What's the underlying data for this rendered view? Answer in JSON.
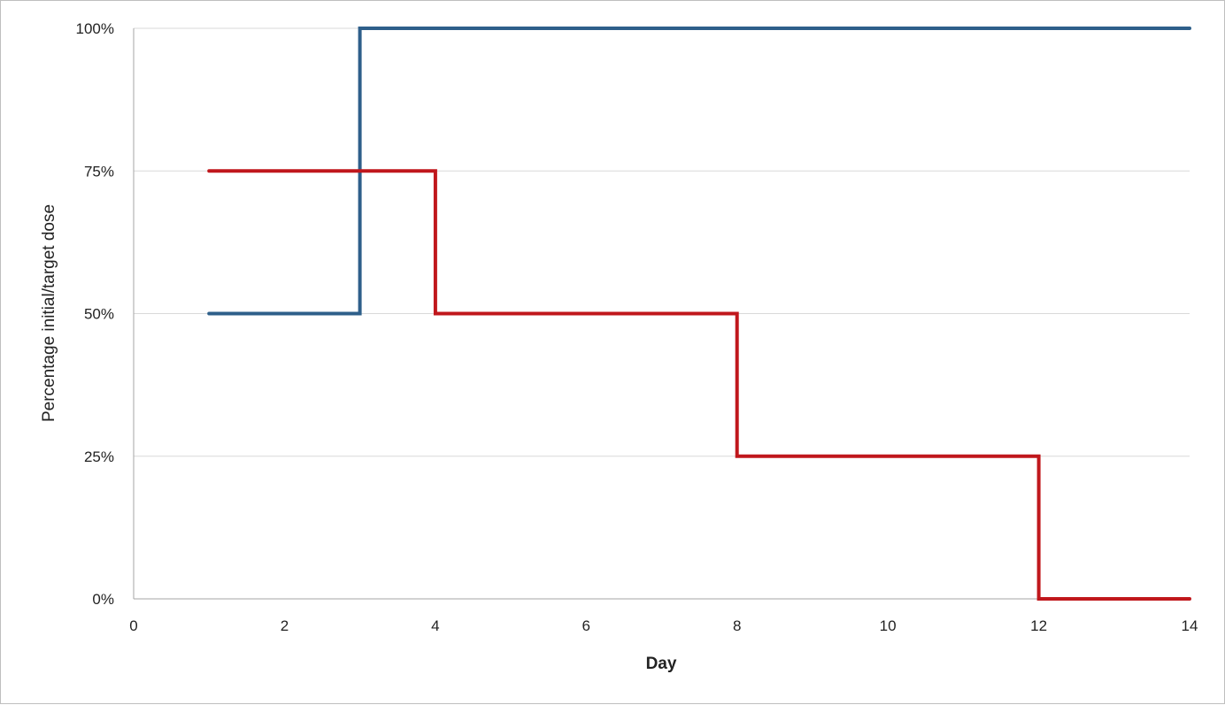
{
  "chart_data": {
    "type": "line",
    "step": true,
    "title": "",
    "xlabel": "Day",
    "ylabel": "Percentage initial/target dose",
    "xlim": [
      0,
      14
    ],
    "ylim": [
      0,
      100
    ],
    "x_ticks": [
      0,
      2,
      4,
      6,
      8,
      10,
      12,
      14
    ],
    "y_ticks": [
      0,
      25,
      50,
      75,
      100
    ],
    "y_tick_labels": [
      "0%",
      "25%",
      "50%",
      "75%",
      "100%"
    ],
    "grid": true,
    "legend": "none",
    "series": [
      {
        "color": "#2e5f8a",
        "points": [
          [
            1,
            50
          ],
          [
            3,
            50
          ],
          [
            3,
            100
          ],
          [
            14,
            100
          ]
        ]
      },
      {
        "color": "#c0171c",
        "points": [
          [
            1,
            75
          ],
          [
            4,
            75
          ],
          [
            4,
            50
          ],
          [
            8,
            50
          ],
          [
            8,
            25
          ],
          [
            12,
            25
          ],
          [
            12,
            0
          ],
          [
            14,
            0
          ]
        ]
      }
    ]
  }
}
